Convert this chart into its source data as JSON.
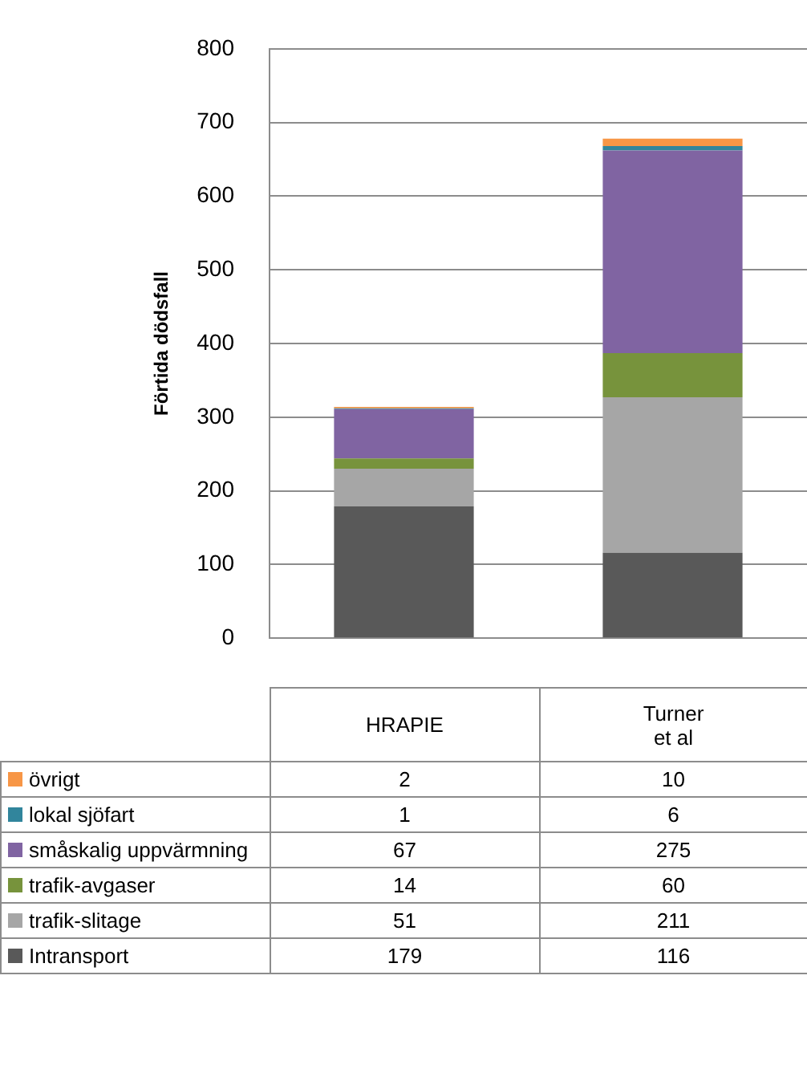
{
  "chart_data": {
    "type": "bar",
    "stacked": true,
    "ylabel": "Förtida dödsfall",
    "categories": [
      "HRAPIE",
      "Turner\net al"
    ],
    "ylim": [
      0,
      800
    ],
    "yticks": [
      0,
      100,
      200,
      300,
      400,
      500,
      600,
      700,
      800
    ],
    "grid": "y",
    "legend": "bottom left",
    "data_labels": true,
    "series": [
      {
        "name": "Intransport",
        "color": "#595959",
        "values": [
          179,
          116
        ]
      },
      {
        "name": "trafik-slitage",
        "color": "#a6a6a6",
        "values": [
          51,
          211
        ]
      },
      {
        "name": "trafik-avgaser",
        "color": "#77933c",
        "values": [
          14,
          60
        ]
      },
      {
        "name": "småskalig uppvärmning",
        "color": "#8064a2",
        "values": [
          67,
          275
        ]
      },
      {
        "name": "lokal sjöfart",
        "color": "#31859c",
        "values": [
          1,
          6
        ]
      },
      {
        "name": "övrigt",
        "color": "#f79646",
        "values": [
          2,
          10
        ]
      }
    ]
  }
}
